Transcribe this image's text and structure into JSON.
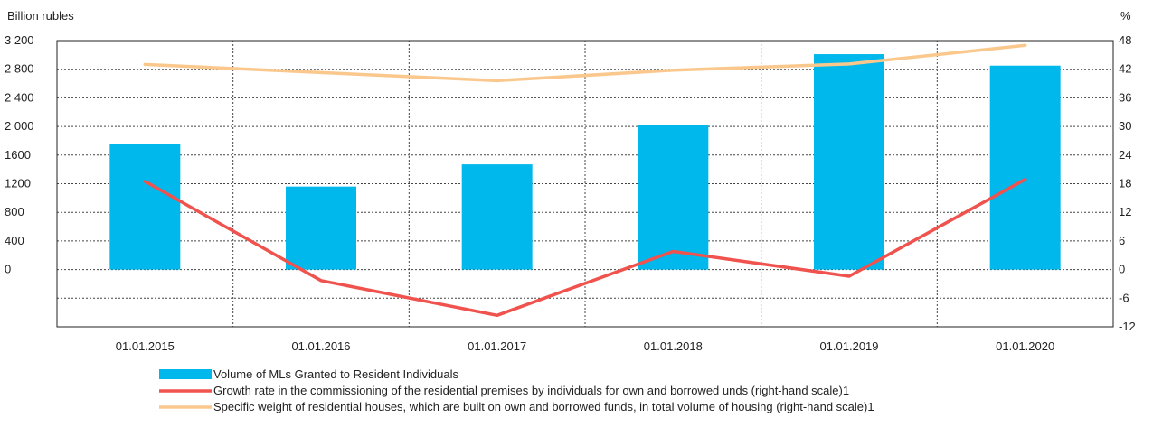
{
  "chart_data": {
    "type": "bar",
    "left_axis_label": "Billion rubles",
    "right_axis_label": "%",
    "categories": [
      "01.01.2015",
      "01.01.2016",
      "01.01.2017",
      "01.01.2018",
      "01.01.2019",
      "01.01.2020"
    ],
    "left_ylim": [
      -800,
      3200
    ],
    "left_ticks": [
      {
        "value": 3200,
        "label": "3 200"
      },
      {
        "value": 2800,
        "label": "2 800"
      },
      {
        "value": 2400,
        "label": "2 400"
      },
      {
        "value": 2000,
        "label": "2 000"
      },
      {
        "value": 1600,
        "label": "1600"
      },
      {
        "value": 1200,
        "label": "1200"
      },
      {
        "value": 800,
        "label": "800"
      },
      {
        "value": 400,
        "label": "400"
      },
      {
        "value": 0,
        "label": "0"
      }
    ],
    "right_ylim": [
      -12,
      48
    ],
    "right_ticks": [
      48,
      42,
      36,
      30,
      24,
      18,
      12,
      6,
      0,
      -6,
      -12
    ],
    "grid": true,
    "legend_position": "bottom",
    "series": [
      {
        "name": "Volume of MLs Granted to Resident Individuals",
        "type": "bar",
        "axis": "left",
        "color": "#00B8EC",
        "values": [
          1760,
          1160,
          1470,
          2020,
          3010,
          2850
        ]
      },
      {
        "name": "Growth rate in the commissioning of the residential premises by individuals for own and borrowed unds (right-hand scale)1",
        "type": "line",
        "axis": "right",
        "color": "#F0524D",
        "values": [
          18.5,
          -2.3,
          -9.6,
          3.8,
          -1.4,
          18.9
        ]
      },
      {
        "name": "Specific weight of residential houses, which are built on own and borrowed funds, in total volume of housing (right-hand scale)1",
        "type": "line",
        "axis": "right",
        "color": "#FAC88C",
        "values": [
          43.0,
          41.3,
          39.6,
          41.8,
          43.1,
          47.0
        ]
      }
    ]
  }
}
